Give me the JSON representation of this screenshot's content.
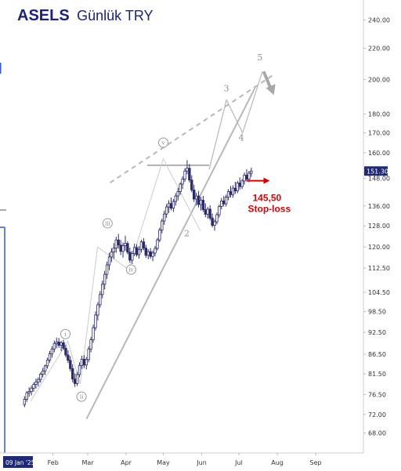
{
  "chart_data": {
    "type": "candlestick",
    "title": "ASELS",
    "subtitle": "Günlük TRY",
    "price_axis_ticks": [
      "240.00",
      "220.00",
      "200.00",
      "180.00",
      "170.00",
      "160.00",
      "148.00",
      "136.00",
      "128.00",
      "120.00",
      "112.50",
      "104.50",
      "98.50",
      "92.50",
      "86.50",
      "81.50",
      "76.50",
      "72.00",
      "68.00"
    ],
    "price_axis_scale": "log",
    "x_axis_ticks": [
      "09 Jan '25",
      "Feb",
      "Mar",
      "Apr",
      "May",
      "Jun",
      "Jul",
      "Aug",
      "Sep"
    ],
    "last_price": "151.30",
    "annotations": {
      "level": "145,50",
      "level_label": "Stop-loss",
      "waves_major": [
        "2",
        "3",
        "4",
        "5"
      ],
      "waves_minor": [
        "i",
        "ii",
        "iii",
        "iv",
        "v"
      ]
    },
    "colors": {
      "candle": "#2b2b6a",
      "trendline": "#b8b8b8",
      "title": "#1a237e",
      "annotation": "#e00000",
      "price_tag": "#1e2a78",
      "date_tag": "#1e2a78"
    },
    "price_range_approx": [
      64,
      255
    ],
    "trendlines": {
      "lower_support": [
        [
          59,
          71
        ],
        [
          195,
          195
        ]
      ],
      "upper_dashed": [
        [
          78,
          146
        ],
        [
          210,
          203
        ]
      ],
      "horizontal_top": [
        [
          108,
          154
        ],
        [
          158,
          154
        ]
      ],
      "projected_waves": [
        [
          158,
          152
        ],
        [
          172,
          188
        ],
        [
          185,
          170
        ],
        [
          201,
          205
        ]
      ]
    },
    "ohlc_note": "approximate daily candles 9 Jan 2025 to mid Jul 2025",
    "ohlc": [
      [
        74.2,
        76.1,
        73.6,
        75.4
      ],
      [
        75.4,
        77.3,
        74.8,
        76.9
      ],
      [
        76.9,
        78.2,
        76.0,
        77.2
      ],
      [
        77.2,
        78.6,
        76.3,
        78.0
      ],
      [
        78.0,
        79.4,
        77.2,
        78.9
      ],
      [
        78.9,
        80.3,
        77.9,
        79.5
      ],
      [
        79.5,
        80.6,
        78.4,
        80.1
      ],
      [
        80.1,
        81.9,
        79.3,
        81.4
      ],
      [
        81.4,
        83.0,
        80.6,
        82.2
      ],
      [
        82.2,
        83.8,
        81.2,
        83.5
      ],
      [
        83.5,
        85.6,
        82.8,
        85.0
      ],
      [
        85.0,
        87.4,
        84.3,
        86.6
      ],
      [
        86.6,
        88.6,
        85.6,
        87.9
      ],
      [
        87.9,
        90.2,
        87.0,
        89.4
      ],
      [
        89.4,
        91.0,
        88.1,
        89.8
      ],
      [
        89.8,
        90.9,
        88.2,
        88.9
      ],
      [
        88.9,
        90.1,
        87.3,
        89.6
      ],
      [
        89.6,
        90.4,
        87.6,
        88.1
      ],
      [
        88.1,
        89.0,
        85.7,
        86.3
      ],
      [
        86.3,
        87.6,
        84.2,
        84.9
      ],
      [
        84.9,
        86.0,
        82.1,
        82.8
      ],
      [
        82.8,
        83.9,
        79.4,
        80.2
      ],
      [
        80.2,
        81.6,
        78.3,
        79.1
      ],
      [
        79.1,
        82.0,
        78.5,
        81.3
      ],
      [
        81.3,
        84.4,
        80.6,
        83.6
      ],
      [
        83.6,
        86.1,
        82.7,
        85.2
      ],
      [
        85.2,
        86.3,
        82.9,
        83.7
      ],
      [
        83.7,
        85.8,
        82.6,
        85.1
      ],
      [
        85.1,
        88.6,
        84.4,
        87.9
      ],
      [
        87.9,
        91.2,
        87.0,
        90.4
      ],
      [
        90.4,
        94.7,
        89.6,
        93.8
      ],
      [
        93.8,
        98.6,
        93.0,
        97.5
      ],
      [
        97.5,
        101.4,
        95.9,
        100.6
      ],
      [
        100.6,
        104.9,
        99.7,
        103.8
      ],
      [
        103.8,
        108.3,
        102.6,
        107.1
      ],
      [
        107.1,
        111.6,
        105.4,
        110.4
      ],
      [
        110.4,
        114.8,
        108.9,
        113.6
      ],
      [
        113.6,
        117.9,
        111.8,
        116.4
      ],
      [
        116.4,
        119.6,
        114.6,
        118.2
      ],
      [
        118.2,
        121.4,
        115.7,
        119.6
      ],
      [
        119.6,
        123.8,
        117.9,
        122.6
      ],
      [
        122.6,
        124.9,
        119.4,
        120.7
      ],
      [
        120.7,
        122.6,
        117.1,
        118.4
      ],
      [
        118.4,
        121.7,
        116.2,
        120.5
      ],
      [
        120.5,
        124.2,
        118.6,
        121.3
      ],
      [
        121.3,
        122.1,
        117.3,
        118.1
      ],
      [
        118.1,
        119.8,
        114.4,
        115.3
      ],
      [
        115.3,
        118.6,
        113.9,
        117.6
      ],
      [
        117.6,
        121.2,
        116.7,
        119.8
      ],
      [
        119.8,
        121.0,
        116.5,
        117.2
      ],
      [
        117.2,
        120.3,
        115.8,
        119.1
      ],
      [
        119.1,
        122.7,
        118.0,
        121.9
      ],
      [
        121.9,
        123.3,
        118.8,
        119.6
      ],
      [
        119.6,
        120.8,
        116.1,
        117.0
      ],
      [
        117.0,
        119.2,
        115.6,
        118.3
      ],
      [
        118.3,
        119.6,
        115.8,
        116.6
      ],
      [
        116.6,
        118.7,
        114.9,
        117.8
      ],
      [
        117.8,
        120.4,
        116.6,
        119.5
      ],
      [
        119.5,
        123.4,
        118.7,
        122.6
      ],
      [
        122.6,
        127.3,
        121.8,
        126.4
      ],
      [
        126.4,
        130.8,
        125.1,
        129.9
      ],
      [
        129.9,
        134.1,
        128.4,
        132.7
      ],
      [
        132.7,
        136.8,
        131.2,
        135.6
      ],
      [
        135.6,
        138.4,
        133.1,
        137.0
      ],
      [
        137.0,
        139.6,
        134.2,
        135.1
      ],
      [
        135.1,
        138.9,
        133.6,
        137.9
      ],
      [
        137.9,
        141.4,
        136.2,
        140.2
      ],
      [
        140.2,
        143.6,
        138.3,
        142.1
      ],
      [
        142.1,
        146.2,
        140.7,
        145.4
      ],
      [
        145.4,
        148.9,
        143.2,
        147.6
      ],
      [
        147.6,
        152.6,
        146.4,
        151.3
      ],
      [
        151.3,
        156.4,
        149.8,
        152.6
      ],
      [
        152.6,
        154.6,
        146.1,
        147.2
      ],
      [
        147.2,
        149.4,
        141.8,
        142.8
      ],
      [
        142.8,
        145.1,
        137.7,
        138.9
      ],
      [
        138.9,
        141.6,
        136.2,
        140.2
      ],
      [
        140.2,
        142.4,
        135.4,
        136.6
      ],
      [
        136.6,
        139.8,
        134.1,
        138.4
      ],
      [
        138.4,
        140.3,
        133.6,
        134.5
      ],
      [
        134.5,
        137.1,
        131.4,
        132.6
      ],
      [
        132.6,
        135.6,
        130.8,
        134.7
      ],
      [
        134.7,
        136.3,
        130.2,
        131.1
      ],
      [
        131.1,
        132.9,
        127.4,
        128.2
      ],
      [
        128.2,
        130.6,
        126.1,
        129.6
      ],
      [
        129.6,
        133.3,
        128.6,
        132.4
      ],
      [
        132.4,
        136.6,
        131.3,
        135.8
      ],
      [
        135.8,
        139.4,
        134.6,
        138.1
      ],
      [
        138.1,
        140.2,
        135.8,
        136.9
      ],
      [
        136.9,
        140.8,
        135.8,
        139.7
      ],
      [
        139.7,
        143.2,
        138.4,
        142.1
      ],
      [
        142.1,
        144.6,
        139.6,
        140.8
      ],
      [
        140.8,
        144.9,
        139.4,
        143.6
      ],
      [
        143.6,
        146.4,
        141.1,
        142.4
      ],
      [
        142.4,
        146.8,
        141.4,
        145.9
      ],
      [
        145.9,
        148.4,
        142.9,
        144.3
      ],
      [
        144.3,
        147.7,
        143.2,
        146.8
      ],
      [
        146.8,
        150.6,
        145.2,
        149.4
      ],
      [
        149.4,
        152.2,
        146.7,
        147.6
      ],
      [
        147.6,
        151.4,
        146.2,
        150.3
      ],
      [
        150.3,
        152.9,
        148.6,
        151.3
      ]
    ]
  }
}
